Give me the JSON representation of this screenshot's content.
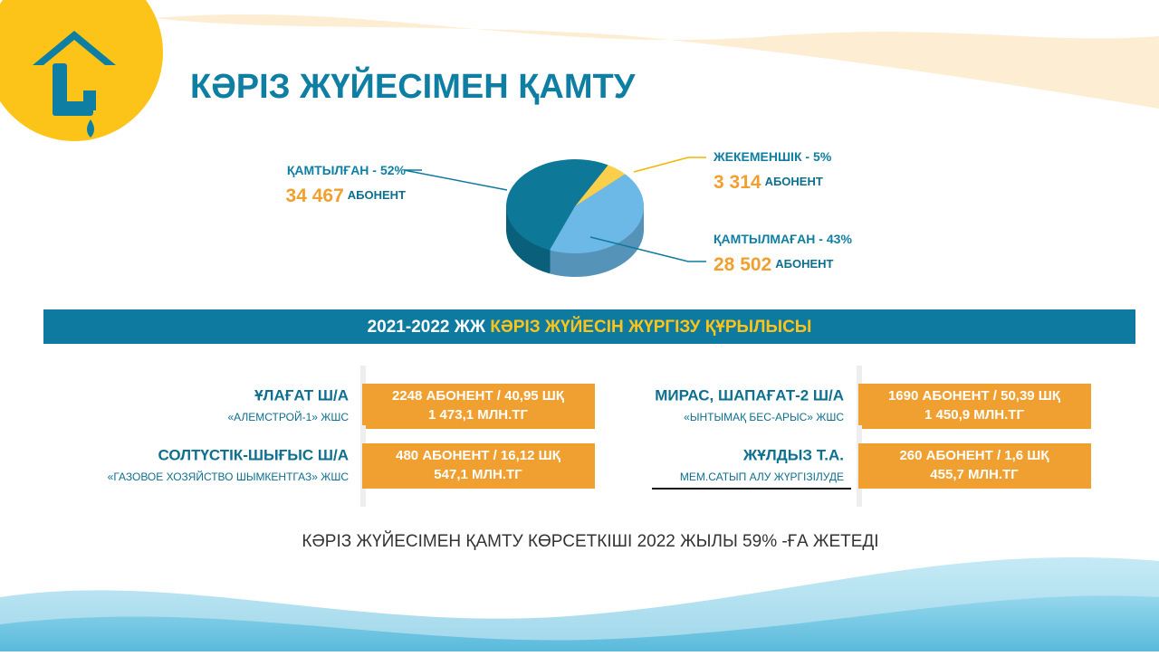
{
  "header": {
    "title": "КӘРІЗ ЖҮЙЕСІМЕН ҚАМТУ"
  },
  "chart_data": {
    "type": "pie",
    "categories": [
      "ҚАМТЫЛҒАН -",
      "ЖЕКЕМЕНШІК -",
      "ҚАМТЫЛМАҒАН -"
    ],
    "values": [
      52,
      5,
      43
    ],
    "value_labels": [
      "52%",
      "5%",
      "43%"
    ],
    "counts": [
      "34 467",
      "3 314",
      "28 502"
    ],
    "unit": "АБОНЕНТ",
    "colors": [
      "#0d7898",
      "#f9cf4c",
      "#6cb8e6"
    ]
  },
  "banner": {
    "years": "2021-2022 ЖЖ",
    "title": "КӘРІЗ ЖҮЙЕСІН ЖҮРГІЗУ ҚҰРЫЛЫСЫ"
  },
  "projects": [
    {
      "name": "ҰЛАҒАТ Ш/А",
      "org": "«АЛЕМСТРОЙ-1» ЖШС",
      "line1": "2248 АБОНЕНТ / 40,95 ШҚ",
      "line2": "1 473,1 МЛН.ТГ"
    },
    {
      "name": "СОЛТҮСТІК-ШЫҒЫС Ш/А",
      "org": "«ГАЗОВОЕ ХОЗЯЙСТВО ШЫМКЕНТГАЗ» ЖШС",
      "line1": "480 АБОНЕНТ / 16,12 ШҚ",
      "line2": "547,1 МЛН.ТГ"
    },
    {
      "name": "МИРАС, ШАПАҒАТ-2 Ш/А",
      "org": "«ЫНТЫМАҚ БЕС-АРЫС» ЖШС",
      "line1": "1690 АБОНЕНТ / 50,39 ШҚ",
      "line2": "1 450,9 МЛН.ТГ"
    },
    {
      "name": "ЖҰЛДЫЗ Т.А.",
      "org": "МЕМ.САТЫП АЛУ ЖҮРГІЗІЛУДЕ",
      "line1": "260 АБОНЕНТ / 1,6 ШҚ",
      "line2": "455,7 МЛН.ТГ"
    }
  ],
  "footer": "КӘРІЗ ЖҮЙЕСІМЕН ҚАМТУ КӨРСЕТКІШІ 2022 ЖЫЛЫ 59% -ҒА ЖЕТЕДІ"
}
